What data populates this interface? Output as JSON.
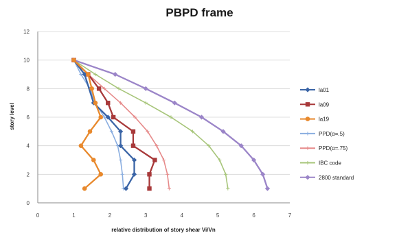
{
  "chart_data": {
    "type": "line",
    "title": "PBPD frame",
    "xlabel": "relative distribution of story shear Vi/Vn",
    "ylabel": "story level",
    "xlim": [
      0,
      7
    ],
    "ylim": [
      0,
      12
    ],
    "xticks": [
      0,
      1,
      2,
      3,
      4,
      5,
      6,
      7
    ],
    "yticks": [
      0,
      2,
      4,
      6,
      8,
      10,
      12
    ],
    "grid": true,
    "legend_position": "right",
    "series": [
      {
        "name": "la01",
        "color": "#3a64a6",
        "marker": "diamond",
        "x": [
          2.45,
          2.68,
          2.68,
          2.3,
          2.3,
          1.95,
          1.55,
          1.3,
          1.0
        ],
        "y": [
          1,
          2,
          3,
          4,
          5,
          6,
          7,
          9,
          10
        ]
      },
      {
        "name": "la09",
        "color": "#a8393a",
        "marker": "square",
        "x": [
          3.1,
          3.1,
          3.25,
          2.65,
          2.65,
          2.1,
          1.95,
          1.7,
          1.4,
          1.0
        ],
        "y": [
          1,
          2,
          3,
          4,
          5,
          6,
          7,
          8,
          9,
          10
        ]
      },
      {
        "name": "la19",
        "color": "#e8892d",
        "marker": "circle",
        "x": [
          1.3,
          1.75,
          1.55,
          1.2,
          1.45,
          1.75,
          1.6,
          1.5,
          1.4,
          1.0
        ],
        "y": [
          1,
          2,
          3,
          4,
          5,
          6,
          7,
          8,
          9,
          10
        ]
      },
      {
        "name": "PPD(α=.5)",
        "color": "#8aaee0",
        "marker": "plus",
        "x": [
          2.38,
          2.35,
          2.3,
          2.22,
          2.05,
          1.85,
          1.6,
          1.45,
          1.2,
          1.0
        ],
        "y": [
          1,
          2,
          3,
          4,
          5,
          6,
          7,
          8,
          9,
          10
        ]
      },
      {
        "name": "PPD(α=.75)",
        "color": "#e68a8a",
        "marker": "plus",
        "x": [
          3.65,
          3.6,
          3.5,
          3.3,
          3.05,
          2.7,
          2.3,
          1.85,
          1.4,
          1.0
        ],
        "y": [
          1,
          2,
          3,
          4,
          5,
          6,
          7,
          8,
          9,
          10
        ]
      },
      {
        "name": "IBC code",
        "color": "#a7c57a",
        "marker": "plus",
        "x": [
          5.28,
          5.22,
          5.05,
          4.75,
          4.3,
          3.7,
          3.0,
          2.25,
          1.6,
          1.0
        ],
        "y": [
          1,
          2,
          3,
          4,
          5,
          6,
          7,
          8,
          9,
          10
        ]
      },
      {
        "name": "2800 standard",
        "color": "#9b85c8",
        "marker": "diamond",
        "x": [
          6.38,
          6.25,
          6.0,
          5.65,
          5.15,
          4.55,
          3.8,
          3.0,
          2.15,
          1.0
        ],
        "y": [
          1,
          2,
          3,
          4,
          5,
          6,
          7,
          8,
          9,
          10
        ]
      }
    ]
  }
}
